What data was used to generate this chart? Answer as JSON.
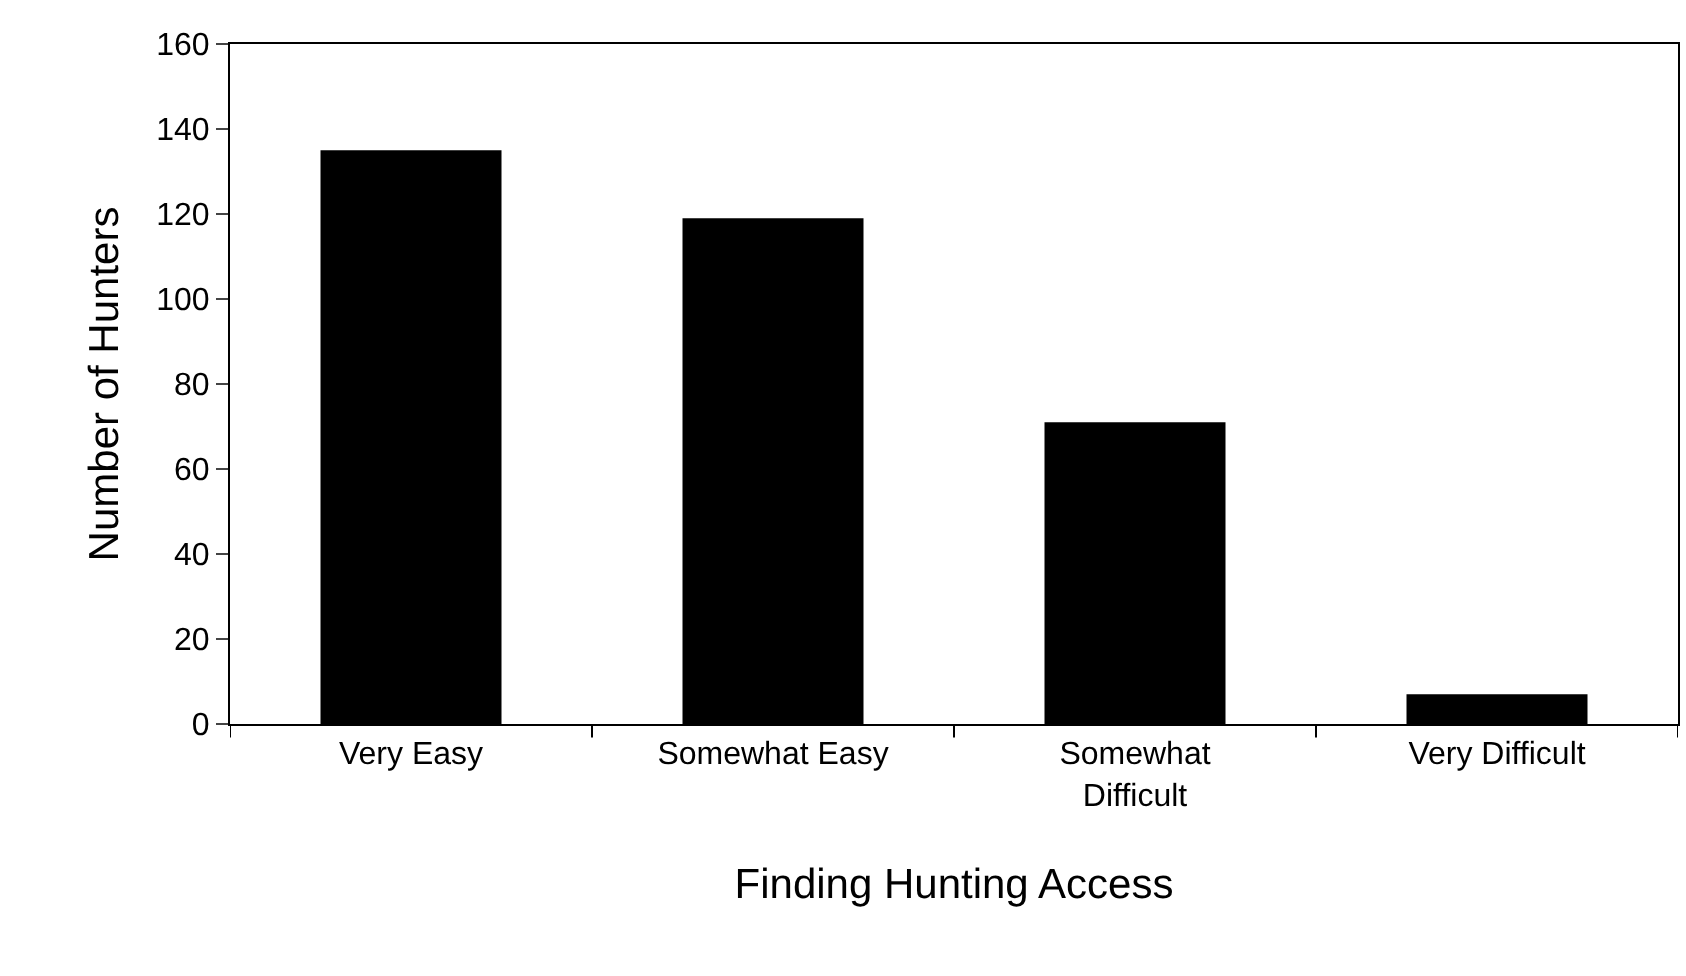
{
  "chart_data": {
    "type": "bar",
    "xlabel": "Finding Hunting Access",
    "ylabel": "Number of Hunters",
    "categories": [
      "Very Easy",
      "Somewhat Easy",
      "Somewhat Difficult",
      "Very Difficult"
    ],
    "values": [
      135,
      119,
      71,
      7
    ],
    "color": "#000000",
    "ylim": [
      0,
      160
    ],
    "yticks": [
      0,
      20,
      40,
      60,
      80,
      100,
      120,
      140,
      160
    ],
    "grid": false
  }
}
